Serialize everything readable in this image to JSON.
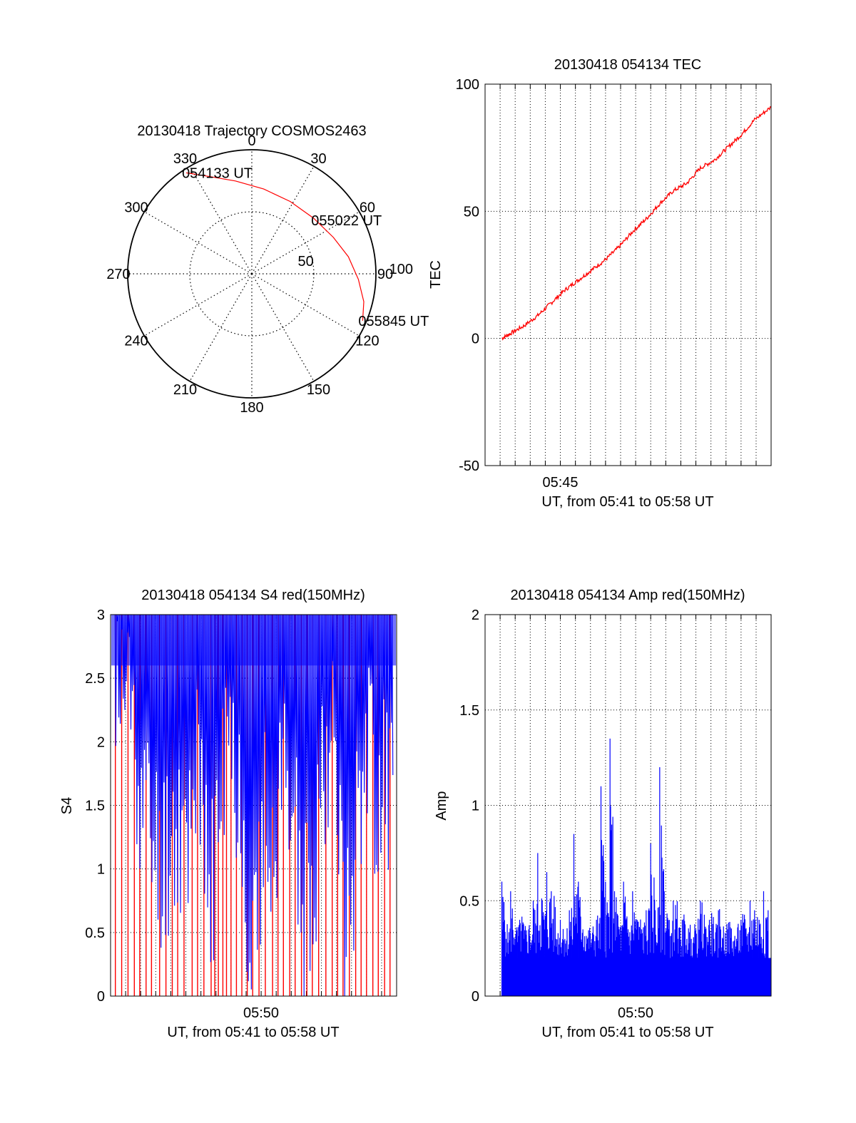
{
  "chart_data": [
    {
      "type": "polar",
      "title": "20130418 Trajectory COSMOS2463",
      "azimuth_labels": [
        "0",
        "30",
        "60",
        "90",
        "120",
        "150",
        "180",
        "210",
        "240",
        "270",
        "300",
        "330"
      ],
      "azimuth_values": [
        0,
        30,
        60,
        90,
        120,
        150,
        180,
        210,
        240,
        270,
        300,
        330
      ],
      "radial_labels": [
        "50",
        "100"
      ],
      "radial_values": [
        50,
        100
      ],
      "radial_range": [
        0,
        100
      ],
      "grid": true,
      "series": [
        {
          "color": "#ff0000",
          "points": [
            {
              "azimuth": 327,
              "radius": 97
            },
            {
              "azimuth": 336,
              "radius": 86
            },
            {
              "azimuth": 350,
              "radius": 76
            },
            {
              "azimuth": 8,
              "radius": 69
            },
            {
              "azimuth": 28,
              "radius": 66
            },
            {
              "azimuth": 48,
              "radius": 67
            },
            {
              "azimuth": 66,
              "radius": 72
            },
            {
              "azimuth": 80,
              "radius": 79
            },
            {
              "azimuth": 93,
              "radius": 86
            },
            {
              "azimuth": 104,
              "radius": 93
            },
            {
              "azimuth": 113,
              "radius": 97
            }
          ]
        }
      ],
      "annotations": [
        {
          "text": "054133 UT",
          "azimuth": 327,
          "radius": 97
        },
        {
          "text": "055022 UT",
          "azimuth": 50,
          "radius": 67
        },
        {
          "text": "055845 UT",
          "azimuth": 113,
          "radius": 97
        }
      ]
    },
    {
      "type": "line",
      "title": "20130418 054134 TEC",
      "xlabel": "UT, from 05:41 to 05:58 UT",
      "ylabel": "TEC",
      "xlim": [
        5.6667,
        5.9833
      ],
      "ylim": [
        -50,
        100
      ],
      "yticks": [
        -50,
        0,
        50,
        100
      ],
      "xticks": [
        {
          "label": "05:45",
          "value": 5.75
        }
      ],
      "grid": true,
      "series": [
        {
          "color": "#ff0000",
          "x": [
            5.6853,
            5.695,
            5.71,
            5.725,
            5.74,
            5.755,
            5.77,
            5.785,
            5.8,
            5.815,
            5.83,
            5.845,
            5.86,
            5.875,
            5.89,
            5.905,
            5.92,
            5.935,
            5.95,
            5.965,
            5.9833
          ],
          "y": [
            0,
            2,
            5,
            9,
            14,
            19,
            23,
            27,
            31,
            36,
            42,
            47,
            53,
            58,
            61,
            67,
            70,
            75,
            80,
            86,
            91
          ]
        }
      ]
    },
    {
      "type": "line",
      "title": "20130418 054134 S4 red(150MHz)",
      "xlabel": "UT, from 05:41 to 05:58 UT",
      "ylabel": "S4",
      "xlim": [
        5.6667,
        5.9833
      ],
      "ylim": [
        0,
        3
      ],
      "yticks": [
        0,
        0.5,
        1,
        1.5,
        2,
        2.5,
        3
      ],
      "ytick_labels": [
        "0",
        "0.5",
        "1",
        "1.5",
        "2",
        "2.5",
        "3"
      ],
      "xticks": [
        {
          "label": "05:50",
          "value": 5.8333
        }
      ],
      "grid": true,
      "series": [
        {
          "color": "#0000ff",
          "x": [
            5.67,
            5.68,
            5.69,
            5.7,
            5.71,
            5.72,
            5.73,
            5.74,
            5.75,
            5.76,
            5.77,
            5.78,
            5.79,
            5.8,
            5.81,
            5.82,
            5.83,
            5.84,
            5.85,
            5.86,
            5.87,
            5.88,
            5.89,
            5.9,
            5.91,
            5.92,
            5.93,
            5.94,
            5.95,
            5.96,
            5.97,
            5.98
          ],
          "y": [
            2.7,
            2.3,
            2.4,
            1.6,
            1.3,
            1.1,
            1.2,
            1.4,
            1.2,
            2.0,
            1.0,
            0.9,
            1.7,
            2.0,
            1.6,
            0.7,
            0.55,
            1.6,
            1.0,
            2.1,
            1.4,
            0.5,
            0.8,
            1.8,
            2.2,
            1.2,
            0.5,
            1.6,
            2.1,
            1.6,
            1.8,
            1.6
          ]
        }
      ],
      "red_drop_x": [
        5.672,
        5.679,
        5.686,
        5.693,
        5.699,
        5.706,
        5.712,
        5.721,
        5.728,
        5.735,
        5.741,
        5.748,
        5.757,
        5.763,
        5.77,
        5.778,
        5.782,
        5.786,
        5.791,
        5.795,
        5.8,
        5.806,
        5.812,
        5.818,
        5.824,
        5.831,
        5.838,
        5.846,
        5.852,
        5.858,
        5.865,
        5.871,
        5.878,
        5.884,
        5.89,
        5.897,
        5.905,
        5.912,
        5.918,
        5.924,
        5.931,
        5.938,
        5.944,
        5.95,
        5.957,
        5.963,
        5.97,
        5.976
      ]
    },
    {
      "type": "bar",
      "title": "20130418 054134 Amp red(150MHz)",
      "xlabel": "UT, from 05:41 to 05:58 UT",
      "ylabel": "Amp",
      "xlim": [
        5.6667,
        5.9833
      ],
      "ylim": [
        0,
        2
      ],
      "yticks": [
        0,
        0.5,
        1,
        1.5,
        2
      ],
      "ytick_labels": [
        "0",
        "0.5",
        "1",
        "1.5",
        "2"
      ],
      "xticks": [
        {
          "label": "05:50",
          "value": 5.8333
        }
      ],
      "grid": true,
      "series": [
        {
          "color": "#0000ff",
          "x": [
            5.6853,
            5.69,
            5.695,
            5.7,
            5.705,
            5.71,
            5.715,
            5.72,
            5.725,
            5.73,
            5.735,
            5.74,
            5.745,
            5.75,
            5.755,
            5.76,
            5.765,
            5.77,
            5.775,
            5.78,
            5.785,
            5.79,
            5.795,
            5.8,
            5.805,
            5.81,
            5.815,
            5.82,
            5.825,
            5.83,
            5.835,
            5.84,
            5.845,
            5.85,
            5.855,
            5.86,
            5.865,
            5.87,
            5.875,
            5.88,
            5.885,
            5.89,
            5.895,
            5.9,
            5.905,
            5.91,
            5.915,
            5.92,
            5.925,
            5.93,
            5.935,
            5.94,
            5.945,
            5.95,
            5.955,
            5.96,
            5.965,
            5.97,
            5.975,
            5.98
          ],
          "y": [
            0.6,
            0.3,
            0.55,
            0.3,
            0.4,
            0.3,
            0.35,
            0.5,
            0.75,
            0.5,
            0.65,
            0.55,
            0.3,
            0.4,
            0.3,
            0.45,
            0.85,
            0.6,
            0.35,
            0.3,
            0.3,
            0.4,
            1.1,
            0.6,
            1.35,
            0.55,
            0.35,
            0.6,
            0.35,
            0.55,
            0.4,
            0.35,
            0.45,
            0.8,
            0.45,
            1.2,
            0.55,
            0.35,
            0.5,
            0.3,
            0.4,
            0.3,
            0.3,
            0.35,
            0.5,
            0.35,
            0.4,
            0.3,
            0.45,
            0.3,
            0.35,
            0.25,
            0.3,
            0.4,
            0.35,
            0.5,
            0.45,
            0.4,
            0.55,
            0.45
          ]
        }
      ]
    }
  ]
}
